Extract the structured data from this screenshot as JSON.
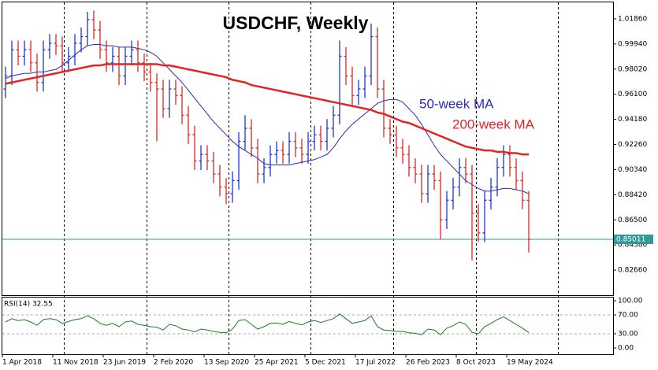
{
  "chart_data": {
    "type": "ohlc",
    "title": "USDCHF, Weekly",
    "categories": [
      "1 Apr 2018",
      null,
      null,
      null,
      null,
      null,
      null,
      null,
      "11 Nov 2018",
      null,
      null,
      null,
      null,
      null,
      null,
      null,
      "23 Jun 2019",
      null,
      null,
      null,
      null,
      null,
      null,
      null,
      "2 Feb 2020",
      null,
      null,
      null,
      null,
      null,
      null,
      null,
      "13 Sep 2020",
      null,
      null,
      null,
      null,
      null,
      null,
      null,
      "25 Apr 2021",
      null,
      null,
      null,
      null,
      null,
      null,
      null,
      "5 Dec 2021",
      null,
      null,
      null,
      null,
      null,
      null,
      null,
      "17 Jul 2022",
      null,
      null,
      null,
      null,
      null,
      null,
      null,
      "26 Feb 2023",
      null,
      null,
      null,
      null,
      null,
      null,
      null,
      "8 Oct 2023",
      null,
      null,
      null,
      null,
      null,
      null,
      null,
      "19 May 2024",
      null,
      null,
      null
    ],
    "open": [
      0.965,
      0.975,
      0.995,
      0.99,
      0.995,
      0.985,
      0.97,
      0.995,
      1.0,
      0.998,
      0.985,
      0.99,
      1.0,
      1.005,
      1.018,
      1.01,
      0.995,
      0.985,
      0.99,
      0.975,
      0.99,
      0.995,
      0.985,
      0.978,
      0.97,
      0.965,
      0.95,
      0.965,
      0.96,
      0.945,
      0.93,
      0.91,
      0.915,
      0.91,
      0.9,
      0.89,
      0.885,
      0.895,
      0.925,
      0.935,
      0.92,
      0.9,
      0.905,
      0.915,
      0.918,
      0.915,
      0.925,
      0.92,
      0.915,
      0.925,
      0.93,
      0.925,
      0.935,
      0.945,
      0.99,
      0.975,
      0.96,
      0.965,
      0.975,
      1.005,
      0.965,
      0.935,
      0.93,
      0.92,
      0.915,
      0.905,
      0.9,
      0.885,
      0.9,
      0.895,
      0.865,
      0.88,
      0.89,
      0.905,
      0.9,
      0.87,
      0.855,
      0.88,
      0.89,
      0.905,
      0.915,
      0.905,
      0.895,
      0.88
    ],
    "high": [
      0.982,
      1.002,
      1.002,
      1.002,
      1.002,
      0.992,
      1.002,
      1.007,
      1.007,
      1.005,
      0.997,
      1.007,
      1.012,
      1.024,
      1.025,
      1.017,
      1.002,
      0.997,
      0.997,
      0.997,
      1.002,
      1.002,
      0.992,
      0.985,
      0.977,
      0.972,
      0.972,
      0.972,
      0.967,
      0.952,
      0.937,
      0.922,
      0.922,
      0.917,
      0.907,
      0.897,
      0.902,
      0.932,
      0.945,
      0.942,
      0.927,
      0.912,
      0.922,
      0.925,
      0.925,
      0.932,
      0.932,
      0.927,
      0.932,
      0.937,
      0.937,
      0.942,
      0.952,
      1.002,
      0.997,
      0.982,
      0.972,
      0.982,
      1.015,
      1.012,
      0.972,
      0.942,
      0.937,
      0.927,
      0.922,
      0.912,
      0.907,
      0.907,
      0.907,
      0.902,
      0.887,
      0.897,
      0.912,
      0.912,
      0.907,
      0.877,
      0.887,
      0.897,
      0.912,
      0.922,
      0.922,
      0.912,
      0.902,
      0.887
    ],
    "low": [
      0.958,
      0.968,
      0.983,
      0.983,
      0.978,
      0.963,
      0.963,
      0.988,
      0.991,
      0.978,
      0.978,
      0.983,
      0.993,
      0.998,
      1.003,
      0.988,
      0.978,
      0.978,
      0.968,
      0.968,
      0.983,
      0.978,
      0.971,
      0.963,
      0.925,
      0.943,
      0.943,
      0.953,
      0.938,
      0.923,
      0.903,
      0.903,
      0.903,
      0.893,
      0.883,
      0.877,
      0.878,
      0.888,
      0.918,
      0.913,
      0.893,
      0.893,
      0.898,
      0.908,
      0.908,
      0.908,
      0.913,
      0.908,
      0.908,
      0.918,
      0.918,
      0.918,
      0.928,
      0.938,
      0.968,
      0.953,
      0.953,
      0.958,
      0.968,
      0.958,
      0.928,
      0.923,
      0.913,
      0.908,
      0.898,
      0.893,
      0.878,
      0.878,
      0.888,
      0.85,
      0.858,
      0.873,
      0.883,
      0.893,
      0.834,
      0.848,
      0.848,
      0.873,
      0.883,
      0.898,
      0.898,
      0.888,
      0.873,
      0.84
    ],
    "close": [
      0.975,
      0.995,
      0.99,
      0.995,
      0.985,
      0.97,
      0.995,
      1.0,
      0.998,
      0.985,
      0.99,
      1.0,
      1.005,
      1.018,
      1.01,
      0.995,
      0.985,
      0.99,
      0.975,
      0.99,
      0.995,
      0.985,
      0.978,
      0.97,
      0.965,
      0.95,
      0.965,
      0.96,
      0.945,
      0.93,
      0.91,
      0.915,
      0.91,
      0.9,
      0.89,
      0.885,
      0.895,
      0.925,
      0.935,
      0.92,
      0.9,
      0.905,
      0.915,
      0.918,
      0.915,
      0.925,
      0.92,
      0.915,
      0.925,
      0.93,
      0.925,
      0.935,
      0.945,
      0.99,
      0.975,
      0.96,
      0.965,
      0.975,
      1.005,
      0.965,
      0.935,
      0.93,
      0.92,
      0.915,
      0.905,
      0.9,
      0.885,
      0.9,
      0.895,
      0.865,
      0.88,
      0.89,
      0.905,
      0.9,
      0.87,
      0.855,
      0.88,
      0.89,
      0.905,
      0.915,
      0.905,
      0.895,
      0.88,
      0.85011
    ],
    "up_color": "#1f35c8",
    "down_color": "#d42a2a",
    "price_line_color": "#2f9a9a",
    "series": [
      {
        "name": "50-week MA",
        "color": "#2b2bb8",
        "width": 1,
        "values": [
          0.973,
          0.975,
          0.976,
          0.977,
          0.977,
          0.978,
          0.978,
          0.979,
          0.98,
          0.983,
          0.987,
          0.991,
          0.995,
          0.998,
          0.999,
          0.999,
          0.998,
          0.998,
          0.997,
          0.997,
          0.997,
          0.996,
          0.995,
          0.993,
          0.99,
          0.985,
          0.98,
          0.975,
          0.97,
          0.964,
          0.958,
          0.952,
          0.946,
          0.94,
          0.935,
          0.93,
          0.925,
          0.921,
          0.918,
          0.915,
          0.912,
          0.908,
          0.907,
          0.907,
          0.907,
          0.907,
          0.908,
          0.909,
          0.91,
          0.911,
          0.913,
          0.915,
          0.92,
          0.927,
          0.933,
          0.938,
          0.942,
          0.946,
          0.95,
          0.954,
          0.956,
          0.957,
          0.957,
          0.955,
          0.95,
          0.945,
          0.938,
          0.93,
          0.922,
          0.915,
          0.91,
          0.905,
          0.9,
          0.895,
          0.892,
          0.889,
          0.887,
          0.887,
          0.888,
          0.889,
          0.889,
          0.888,
          0.887,
          0.885
        ]
      },
      {
        "name": "200-week MA",
        "color": "#e02525",
        "width": 2.5,
        "values": [
          0.969,
          0.97,
          0.971,
          0.972,
          0.973,
          0.974,
          0.975,
          0.976,
          0.977,
          0.978,
          0.979,
          0.98,
          0.981,
          0.982,
          0.983,
          0.983,
          0.984,
          0.984,
          0.984,
          0.984,
          0.984,
          0.984,
          0.984,
          0.984,
          0.984,
          0.983,
          0.983,
          0.982,
          0.981,
          0.98,
          0.979,
          0.978,
          0.977,
          0.976,
          0.975,
          0.974,
          0.972,
          0.971,
          0.97,
          0.968,
          0.967,
          0.966,
          0.965,
          0.964,
          0.963,
          0.962,
          0.961,
          0.96,
          0.959,
          0.958,
          0.957,
          0.956,
          0.955,
          0.954,
          0.953,
          0.952,
          0.951,
          0.95,
          0.949,
          0.947,
          0.946,
          0.944,
          0.942,
          0.94,
          0.939,
          0.937,
          0.935,
          0.933,
          0.931,
          0.929,
          0.927,
          0.925,
          0.923,
          0.921,
          0.92,
          0.919,
          0.918,
          0.918,
          0.917,
          0.917,
          0.916,
          0.916,
          0.915,
          0.915
        ]
      }
    ],
    "ylim": [
      0.8074,
      1.0312
    ],
    "yticks": [
      {
        "value": 1.0186,
        "label": "1.01860"
      },
      {
        "value": 0.9994,
        "label": "0.99940"
      },
      {
        "value": 0.9802,
        "label": "0.98020"
      },
      {
        "value": 0.961,
        "label": "0.96100"
      },
      {
        "value": 0.9418,
        "label": "0.94180"
      },
      {
        "value": 0.9226,
        "label": "0.92260"
      },
      {
        "value": 0.9034,
        "label": "0.90340"
      },
      {
        "value": 0.8842,
        "label": "0.88420"
      },
      {
        "value": 0.865,
        "label": "0.86500"
      },
      {
        "value": 0.8458,
        "label": "0.84580"
      },
      {
        "value": 0.8266,
        "label": "0.82660"
      }
    ],
    "rsi": {
      "label": "RSI(14) 32.55",
      "color": "#1f7a1f",
      "values": [
        55,
        62,
        58,
        60,
        55,
        48,
        60,
        62,
        60,
        52,
        56,
        60,
        62,
        68,
        62,
        52,
        48,
        52,
        45,
        55,
        57,
        50,
        48,
        45,
        44,
        38,
        50,
        47,
        40,
        38,
        34,
        40,
        38,
        35,
        33,
        32,
        40,
        58,
        60,
        50,
        40,
        45,
        52,
        53,
        50,
        56,
        52,
        49,
        55,
        58,
        54,
        58,
        62,
        72,
        62,
        52,
        55,
        58,
        68,
        45,
        38,
        37,
        35,
        35,
        32,
        31,
        28,
        40,
        38,
        28,
        42,
        47,
        55,
        50,
        33,
        30,
        45,
        52,
        60,
        66,
        58,
        50,
        42,
        32.55
      ],
      "ylim": [
        0,
        100
      ],
      "yticks": [
        {
          "value": 100,
          "label": "100.00"
        },
        {
          "value": 70,
          "label": "70.00"
        },
        {
          "value": 30,
          "label": "30.00"
        },
        {
          "value": 0,
          "label": "0.00"
        }
      ],
      "levels": [
        70,
        30
      ]
    }
  }
}
